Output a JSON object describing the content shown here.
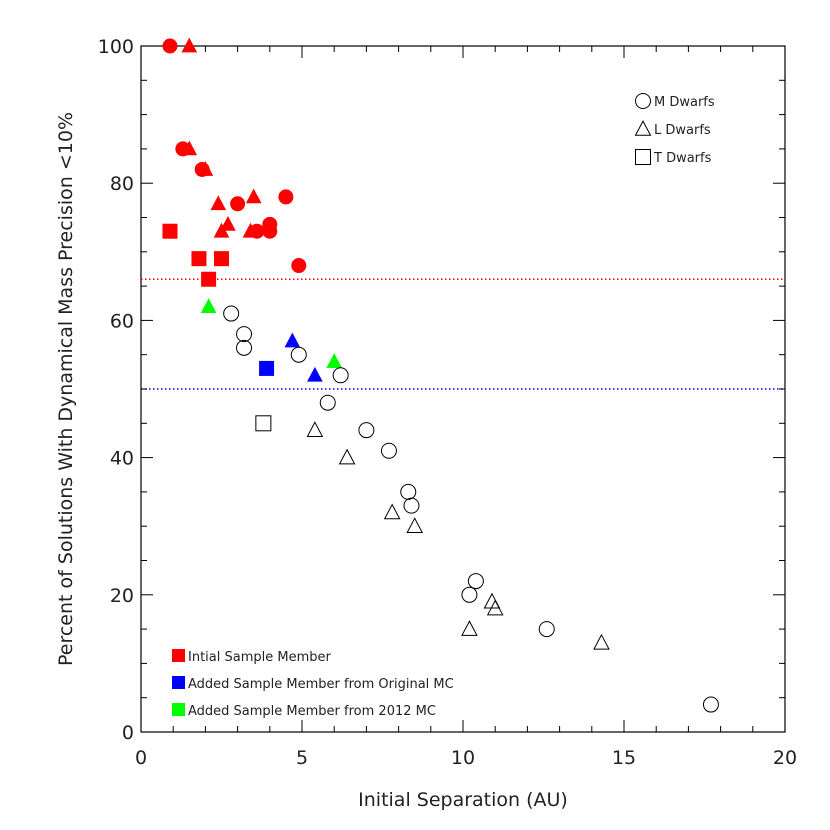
{
  "chart_data": {
    "type": "scatter",
    "title": "",
    "xlabel": "Initial Separation (AU)",
    "ylabel": "Percent of Solutions With Dynamical Mass Precision <10%",
    "xlim": [
      0,
      20
    ],
    "ylim": [
      0,
      100
    ],
    "x_ticks": [
      0,
      5,
      10,
      15,
      20
    ],
    "y_ticks": [
      0,
      20,
      40,
      60,
      80,
      100
    ],
    "grid": false,
    "colors": {
      "initial": "#ff0000",
      "original_mc": "#0000ff",
      "mc_2012": "#00ff00",
      "other": "#000000"
    },
    "reference_lines": [
      {
        "y": 66,
        "color": "#ff0000",
        "style": "dotted"
      },
      {
        "y": 50,
        "color": "#0000ff",
        "style": "dotted"
      }
    ],
    "shape_legend": [
      {
        "shape": "circle",
        "label": "M Dwarfs"
      },
      {
        "shape": "triangle",
        "label": "L Dwarfs"
      },
      {
        "shape": "square",
        "label": "T Dwarfs"
      }
    ],
    "color_legend": [
      {
        "group": "initial",
        "label": "Intial Sample Member"
      },
      {
        "group": "original_mc",
        "label": "Added Sample Member from Original MC"
      },
      {
        "group": "mc_2012",
        "label": "Added Sample Member from 2012 MC"
      }
    ],
    "points": [
      {
        "x": 0.9,
        "y": 100,
        "shape": "circle",
        "group": "initial"
      },
      {
        "x": 1.5,
        "y": 100,
        "shape": "triangle",
        "group": "initial"
      },
      {
        "x": 1.3,
        "y": 85,
        "shape": "circle",
        "group": "initial"
      },
      {
        "x": 1.5,
        "y": 85,
        "shape": "triangle",
        "group": "initial"
      },
      {
        "x": 1.9,
        "y": 82,
        "shape": "circle",
        "group": "initial"
      },
      {
        "x": 2.0,
        "y": 82,
        "shape": "triangle",
        "group": "initial"
      },
      {
        "x": 2.4,
        "y": 77,
        "shape": "triangle",
        "group": "initial"
      },
      {
        "x": 3.0,
        "y": 77,
        "shape": "circle",
        "group": "initial"
      },
      {
        "x": 3.5,
        "y": 78,
        "shape": "triangle",
        "group": "initial"
      },
      {
        "x": 4.5,
        "y": 78,
        "shape": "circle",
        "group": "initial"
      },
      {
        "x": 2.7,
        "y": 74,
        "shape": "triangle",
        "group": "initial"
      },
      {
        "x": 2.5,
        "y": 73,
        "shape": "triangle",
        "group": "initial"
      },
      {
        "x": 3.4,
        "y": 73,
        "shape": "triangle",
        "group": "initial"
      },
      {
        "x": 3.6,
        "y": 73,
        "shape": "circle",
        "group": "initial"
      },
      {
        "x": 4.0,
        "y": 74,
        "shape": "circle",
        "group": "initial"
      },
      {
        "x": 4.0,
        "y": 73,
        "shape": "circle",
        "group": "initial"
      },
      {
        "x": 0.9,
        "y": 73,
        "shape": "square",
        "group": "initial"
      },
      {
        "x": 1.8,
        "y": 69,
        "shape": "square",
        "group": "initial"
      },
      {
        "x": 2.5,
        "y": 69,
        "shape": "square",
        "group": "initial"
      },
      {
        "x": 4.9,
        "y": 68,
        "shape": "circle",
        "group": "initial"
      },
      {
        "x": 2.1,
        "y": 66,
        "shape": "square",
        "group": "initial"
      },
      {
        "x": 2.1,
        "y": 62,
        "shape": "triangle",
        "group": "mc_2012"
      },
      {
        "x": 6.0,
        "y": 54,
        "shape": "triangle",
        "group": "mc_2012"
      },
      {
        "x": 4.7,
        "y": 57,
        "shape": "triangle",
        "group": "original_mc"
      },
      {
        "x": 3.9,
        "y": 53,
        "shape": "square",
        "group": "original_mc"
      },
      {
        "x": 5.4,
        "y": 52,
        "shape": "triangle",
        "group": "original_mc"
      },
      {
        "x": 2.8,
        "y": 61,
        "shape": "circle",
        "group": "other"
      },
      {
        "x": 3.2,
        "y": 58,
        "shape": "circle",
        "group": "other"
      },
      {
        "x": 3.2,
        "y": 56,
        "shape": "circle",
        "group": "other"
      },
      {
        "x": 4.9,
        "y": 55,
        "shape": "circle",
        "group": "other"
      },
      {
        "x": 6.2,
        "y": 52,
        "shape": "circle",
        "group": "other"
      },
      {
        "x": 5.8,
        "y": 48,
        "shape": "circle",
        "group": "other"
      },
      {
        "x": 3.8,
        "y": 45,
        "shape": "square",
        "group": "other"
      },
      {
        "x": 5.4,
        "y": 44,
        "shape": "triangle",
        "group": "other"
      },
      {
        "x": 7.0,
        "y": 44,
        "shape": "circle",
        "group": "other"
      },
      {
        "x": 7.7,
        "y": 41,
        "shape": "circle",
        "group": "other"
      },
      {
        "x": 6.4,
        "y": 40,
        "shape": "triangle",
        "group": "other"
      },
      {
        "x": 8.3,
        "y": 35,
        "shape": "circle",
        "group": "other"
      },
      {
        "x": 8.4,
        "y": 33,
        "shape": "circle",
        "group": "other"
      },
      {
        "x": 7.8,
        "y": 32,
        "shape": "triangle",
        "group": "other"
      },
      {
        "x": 8.5,
        "y": 30,
        "shape": "triangle",
        "group": "other"
      },
      {
        "x": 10.4,
        "y": 22,
        "shape": "circle",
        "group": "other"
      },
      {
        "x": 10.2,
        "y": 20,
        "shape": "circle",
        "group": "other"
      },
      {
        "x": 10.9,
        "y": 19,
        "shape": "triangle",
        "group": "other"
      },
      {
        "x": 11.0,
        "y": 18,
        "shape": "triangle",
        "group": "other"
      },
      {
        "x": 10.2,
        "y": 15,
        "shape": "triangle",
        "group": "other"
      },
      {
        "x": 12.6,
        "y": 15,
        "shape": "circle",
        "group": "other"
      },
      {
        "x": 14.3,
        "y": 13,
        "shape": "triangle",
        "group": "other"
      },
      {
        "x": 17.7,
        "y": 4,
        "shape": "circle",
        "group": "other"
      }
    ]
  }
}
